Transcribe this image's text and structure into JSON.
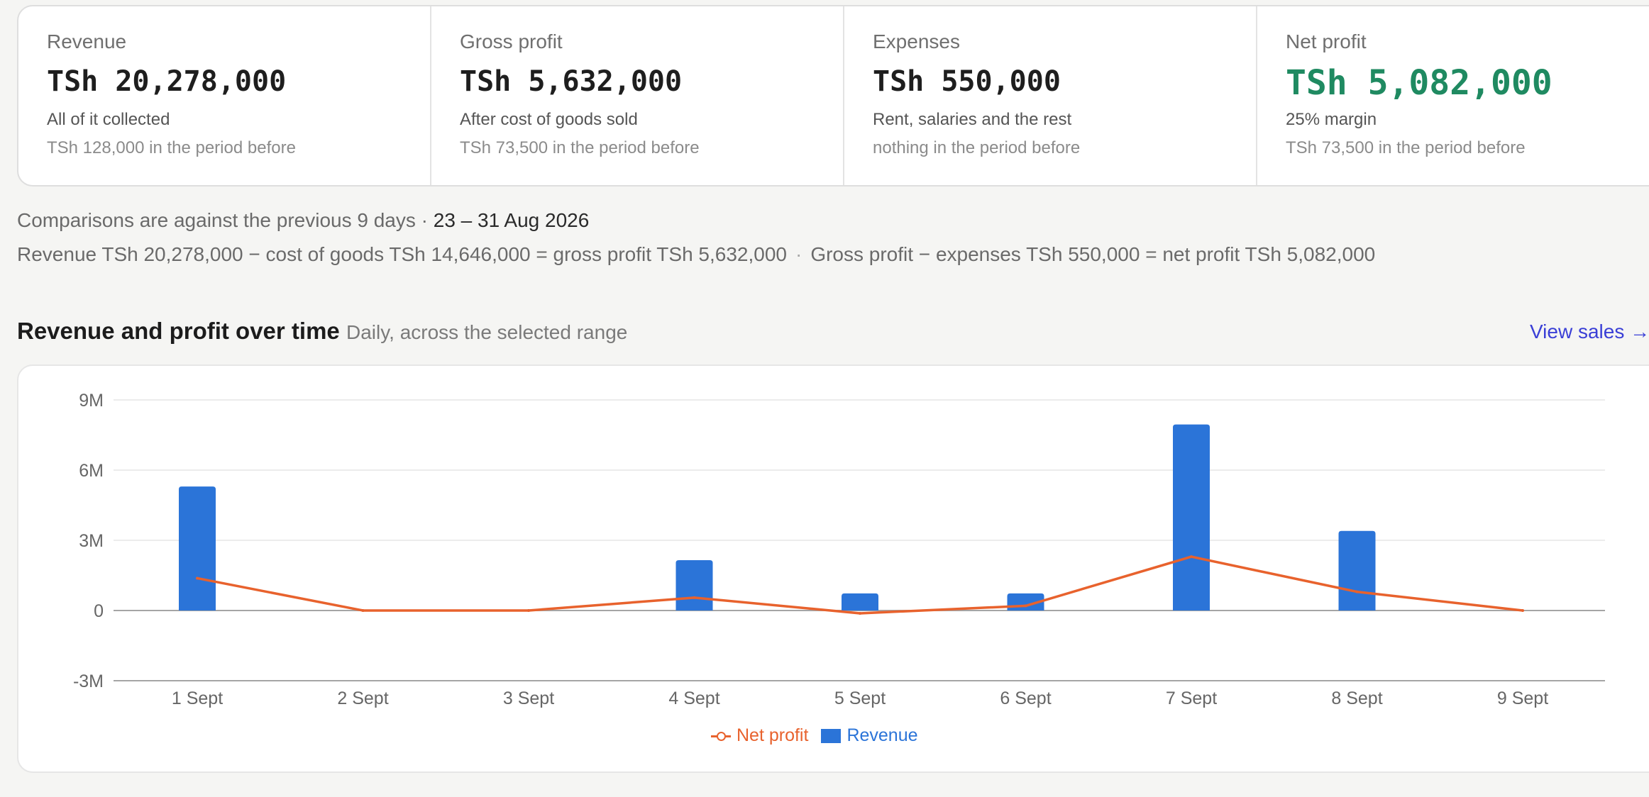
{
  "kpis": [
    {
      "label": "Revenue",
      "value": "TSh 20,278,000",
      "sub": "All of it collected",
      "prev": "TSh 128,000 in the period before"
    },
    {
      "label": "Gross profit",
      "value": "TSh 5,632,000",
      "sub": "After cost of goods sold",
      "prev": "TSh 73,500 in the period before"
    },
    {
      "label": "Expenses",
      "value": "TSh 550,000",
      "sub": "Rent, salaries and the rest",
      "prev": "nothing in the period before"
    },
    {
      "label": "Net profit",
      "value": "TSh 5,082,000",
      "sub": "25% margin",
      "prev": "TSh 73,500 in the period before"
    }
  ],
  "comparison": {
    "text": "Comparisons are against the previous 9 days · ",
    "range": "23 – 31 Aug 2026"
  },
  "formula": {
    "gross": "Revenue TSh 20,278,000 − cost of goods TSh 14,646,000 = gross profit TSh 5,632,000",
    "separator": "·",
    "net": "Gross profit − expenses TSh 550,000 = net profit TSh 5,082,000"
  },
  "section": {
    "title": "Revenue and profit over time",
    "subtitle": "Daily, across the selected range",
    "link": "View sales →"
  },
  "colors": {
    "revenue": "#2b74d8",
    "net_profit": "#e8622d",
    "net_profit_value": "#1f8a61"
  },
  "chart_data": {
    "type": "bar",
    "categories": [
      "1 Sept",
      "2 Sept",
      "3 Sept",
      "4 Sept",
      "5 Sept",
      "6 Sept",
      "7 Sept",
      "8 Sept",
      "9 Sept"
    ],
    "series": [
      {
        "name": "Revenue",
        "type": "bar",
        "values": [
          5300000,
          0,
          0,
          2150000,
          730000,
          730000,
          7950000,
          3400000,
          0
        ]
      },
      {
        "name": "Net profit",
        "type": "line",
        "values": [
          1380000,
          0,
          0,
          550000,
          -120000,
          200000,
          2300000,
          800000,
          0
        ]
      }
    ],
    "yticks": [
      "9M",
      "6M",
      "3M",
      "0",
      "-3M"
    ],
    "ytick_values": [
      9000000,
      6000000,
      3000000,
      0,
      -3000000
    ],
    "ylim": [
      -3000000,
      9000000
    ],
    "grid": true,
    "legend": "bottom-center"
  }
}
